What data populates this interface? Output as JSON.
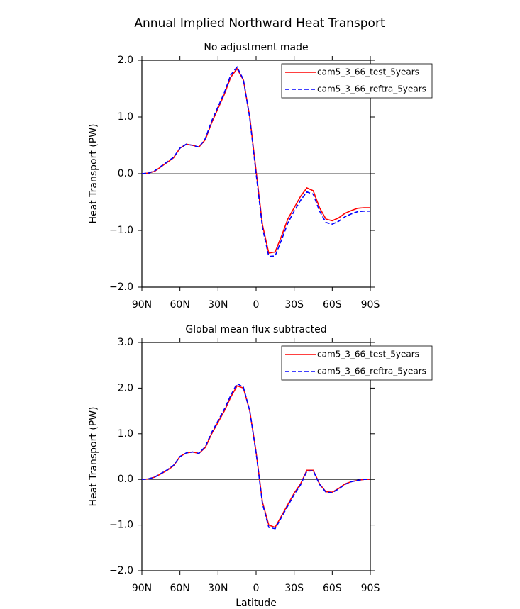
{
  "title": "Annual Implied Northward Heat Transport",
  "chart_data": [
    {
      "type": "line",
      "title": "No adjustment made",
      "ylabel": "Heat Transport (PW)",
      "x": [
        90,
        85,
        80,
        75,
        70,
        65,
        60,
        55,
        50,
        45,
        40,
        35,
        30,
        25,
        20,
        15,
        10,
        5,
        0,
        -5,
        -10,
        -15,
        -20,
        -25,
        -30,
        -35,
        -40,
        -45,
        -50,
        -55,
        -60,
        -65,
        -70,
        -75,
        -80,
        -85,
        -90
      ],
      "xlim": [
        90,
        -90
      ],
      "xticks": [
        {
          "value": 90,
          "label": "90N"
        },
        {
          "value": 60,
          "label": "60N"
        },
        {
          "value": 30,
          "label": "30N"
        },
        0,
        {
          "value": -30,
          "label": "30S"
        },
        {
          "value": -60,
          "label": "60S"
        },
        {
          "value": -90,
          "label": "90S"
        }
      ],
      "ylim": [
        -2,
        2
      ],
      "yticks": [
        {
          "value": -2,
          "label": "−2.0"
        },
        {
          "value": -1,
          "label": "−1.0"
        },
        {
          "value": 0,
          "label": "0.0"
        },
        {
          "value": 1,
          "label": "1.0"
        },
        {
          "value": 2,
          "label": "2.0"
        }
      ],
      "legend": "upper right",
      "series": [
        {
          "name": "cam5_3_66_test_5years",
          "color": "#ff0000",
          "line_style": "solid",
          "values": [
            0,
            0.01,
            0.04,
            0.12,
            0.2,
            0.28,
            0.45,
            0.52,
            0.5,
            0.47,
            0.6,
            0.9,
            1.15,
            1.4,
            1.7,
            1.85,
            1.65,
            1.0,
            0.05,
            -0.9,
            -1.4,
            -1.38,
            -1.1,
            -0.8,
            -0.6,
            -0.4,
            -0.25,
            -0.3,
            -0.6,
            -0.8,
            -0.83,
            -0.78,
            -0.7,
            -0.65,
            -0.61,
            -0.6,
            -0.6
          ]
        },
        {
          "name": "cam5_3_66_reftra_5years",
          "color": "#0000ff",
          "line_style": "dashed",
          "values": [
            0,
            0.01,
            0.05,
            0.13,
            0.21,
            0.29,
            0.45,
            0.52,
            0.5,
            0.47,
            0.62,
            0.93,
            1.18,
            1.43,
            1.74,
            1.88,
            1.66,
            0.98,
            0.0,
            -0.95,
            -1.46,
            -1.45,
            -1.17,
            -0.87,
            -0.66,
            -0.47,
            -0.32,
            -0.36,
            -0.66,
            -0.86,
            -0.89,
            -0.84,
            -0.76,
            -0.71,
            -0.67,
            -0.66,
            -0.66
          ]
        }
      ]
    },
    {
      "type": "line",
      "title": "Global mean flux subtracted",
      "ylabel": "Heat Transport (PW)",
      "xlabel": "Latitude",
      "x": [
        90,
        85,
        80,
        75,
        70,
        65,
        60,
        55,
        50,
        45,
        40,
        35,
        30,
        25,
        20,
        15,
        10,
        5,
        0,
        -5,
        -10,
        -15,
        -20,
        -25,
        -30,
        -35,
        -40,
        -45,
        -50,
        -55,
        -60,
        -65,
        -70,
        -75,
        -80,
        -85,
        -90
      ],
      "xlim": [
        90,
        -90
      ],
      "xticks": [
        {
          "value": 90,
          "label": "90N"
        },
        {
          "value": 60,
          "label": "60N"
        },
        {
          "value": 30,
          "label": "30N"
        },
        0,
        {
          "value": -30,
          "label": "30S"
        },
        {
          "value": -60,
          "label": "60S"
        },
        {
          "value": -90,
          "label": "90S"
        }
      ],
      "ylim": [
        -2,
        3
      ],
      "yticks": [
        {
          "value": -2,
          "label": "−2.0"
        },
        {
          "value": -1,
          "label": "−1.0"
        },
        {
          "value": 0,
          "label": "0.0"
        },
        {
          "value": 1,
          "label": "1.0"
        },
        {
          "value": 2,
          "label": "2.0"
        },
        {
          "value": 3,
          "label": "3.0"
        }
      ],
      "legend": "upper right",
      "series": [
        {
          "name": "cam5_3_66_test_5years",
          "color": "#ff0000",
          "line_style": "solid",
          "values": [
            0,
            0.01,
            0.05,
            0.12,
            0.2,
            0.3,
            0.5,
            0.58,
            0.6,
            0.57,
            0.7,
            1.0,
            1.25,
            1.5,
            1.8,
            2.05,
            2.0,
            1.5,
            0.6,
            -0.5,
            -1.0,
            -1.05,
            -0.8,
            -0.55,
            -0.3,
            -0.1,
            0.2,
            0.2,
            -0.1,
            -0.27,
            -0.28,
            -0.2,
            -0.1,
            -0.05,
            -0.02,
            0,
            0
          ]
        },
        {
          "name": "cam5_3_66_reftra_5years",
          "color": "#0000ff",
          "line_style": "dashed",
          "values": [
            0,
            0.01,
            0.05,
            0.13,
            0.21,
            0.31,
            0.5,
            0.58,
            0.6,
            0.57,
            0.72,
            1.03,
            1.28,
            1.54,
            1.84,
            2.1,
            2.02,
            1.5,
            0.58,
            -0.53,
            -1.05,
            -1.08,
            -0.83,
            -0.58,
            -0.33,
            -0.12,
            0.18,
            0.19,
            -0.11,
            -0.28,
            -0.29,
            -0.21,
            -0.11,
            -0.05,
            -0.02,
            0,
            0
          ]
        }
      ]
    }
  ]
}
